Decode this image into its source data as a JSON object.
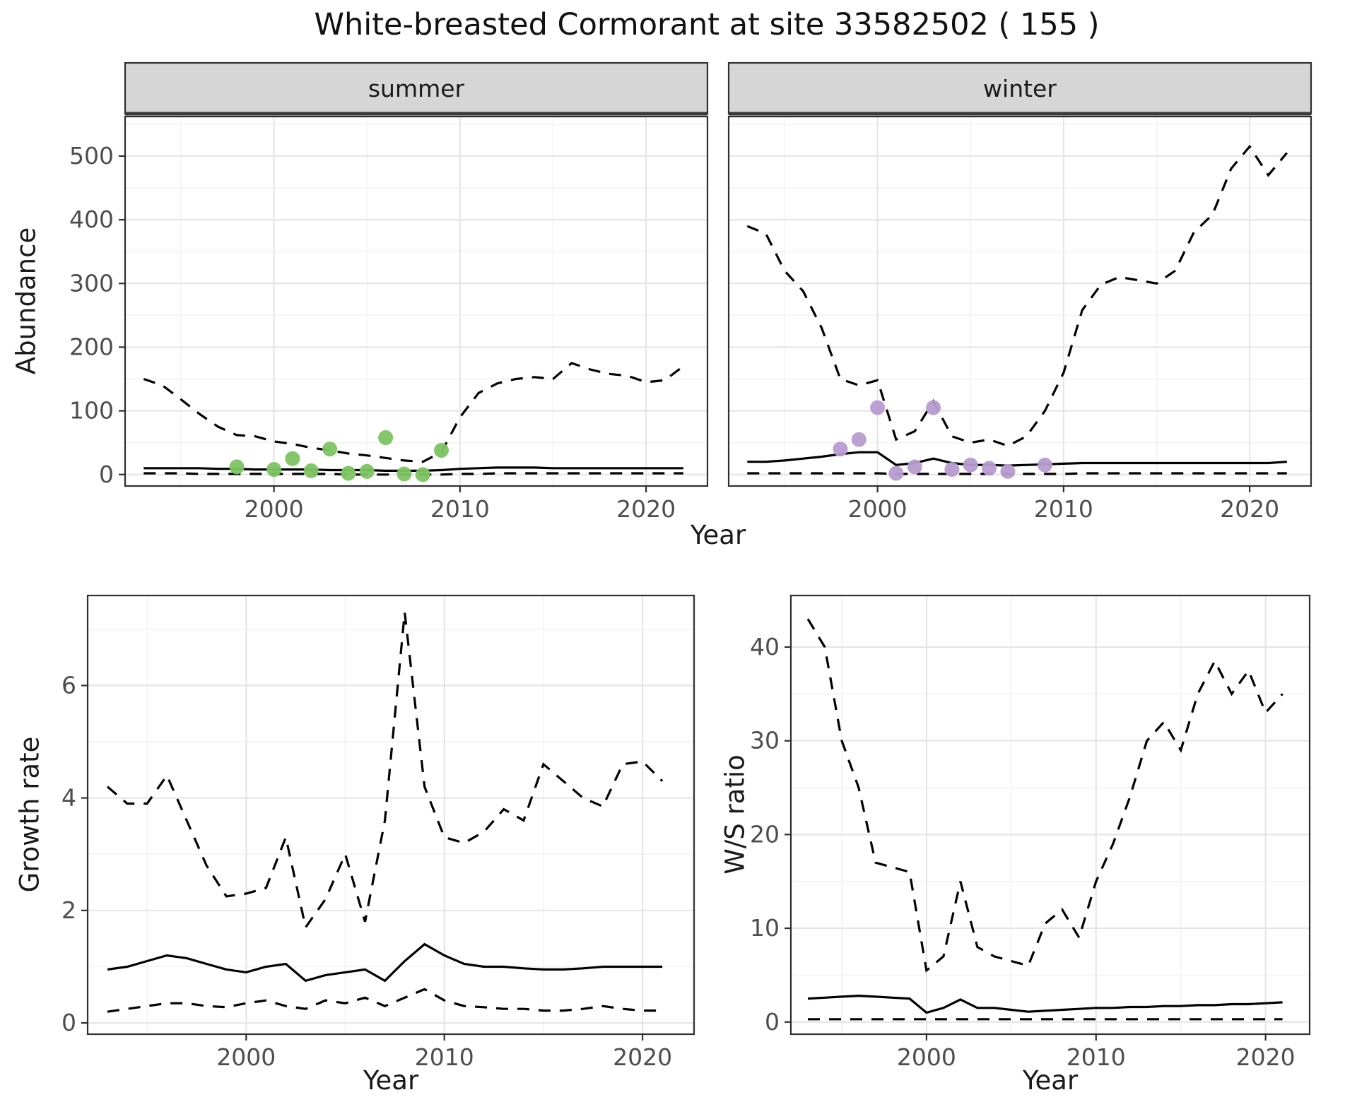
{
  "title": "White-breasted Cormorant at site 33582502 ( 155 )",
  "style": {
    "panel_bg": "#ffffff",
    "panel_border": "#2f2f2f",
    "grid_major": "#e4e4e4",
    "grid_minor": "#f2f2f2",
    "strip_bg": "#d6d6d6",
    "strip_divider": "#3a3a3a",
    "line": "#000000",
    "tick_text": "#4d4d4d",
    "summer_point_color": "#7cc462",
    "winter_point_color": "#b79bd0"
  },
  "chart_data": [
    {
      "type": "line",
      "facet_label": "summer",
      "xlabel": "Year",
      "ylabel": "Abundance",
      "xlim": [
        1992,
        2023.3
      ],
      "ylim": [
        -18,
        562
      ],
      "xticks": [
        2000,
        2010,
        2020
      ],
      "yticks": [
        0,
        100,
        200,
        300,
        400,
        500
      ],
      "x": [
        1993,
        1994,
        1995,
        1996,
        1997,
        1998,
        1999,
        2000,
        2001,
        2002,
        2003,
        2004,
        2005,
        2006,
        2007,
        2008,
        2009,
        2010,
        2011,
        2012,
        2013,
        2014,
        2015,
        2016,
        2017,
        2018,
        2019,
        2020,
        2021,
        2022
      ],
      "series": [
        {
          "name": "upper-ci",
          "dashed": true,
          "values": [
            150,
            140,
            118,
            95,
            75,
            62,
            60,
            52,
            48,
            42,
            38,
            33,
            30,
            26,
            22,
            20,
            35,
            90,
            128,
            143,
            150,
            153,
            150,
            175,
            165,
            158,
            155,
            145,
            148,
            170
          ]
        },
        {
          "name": "median",
          "dashed": false,
          "values": [
            10,
            10,
            10,
            10,
            9,
            9,
            8,
            8,
            8,
            8,
            7,
            7,
            7,
            6,
            6,
            6,
            7,
            9,
            10,
            11,
            11,
            11,
            10,
            10,
            10,
            10,
            10,
            10,
            10,
            10
          ]
        },
        {
          "name": "lower-ci",
          "dashed": true,
          "values": [
            2,
            2,
            2,
            1,
            1,
            1,
            1,
            1,
            1,
            1,
            1,
            0,
            0,
            0,
            0,
            0,
            0,
            1,
            1,
            2,
            2,
            2,
            2,
            2,
            2,
            2,
            2,
            2,
            2,
            2
          ]
        }
      ],
      "points": {
        "name": "summer-counts",
        "color": "#7cc462",
        "x": [
          1998,
          2000,
          2001,
          2002,
          2003,
          2004,
          2005,
          2006,
          2007,
          2008,
          2009
        ],
        "y": [
          12,
          8,
          25,
          6,
          40,
          2,
          5,
          58,
          1,
          0,
          38
        ]
      }
    },
    {
      "type": "line",
      "facet_label": "winter",
      "xlabel": "Year",
      "ylabel": "Abundance",
      "xlim": [
        1992,
        2023.3
      ],
      "ylim": [
        -18,
        562
      ],
      "xticks": [
        2000,
        2010,
        2020
      ],
      "yticks": [
        0,
        100,
        200,
        300,
        400,
        500
      ],
      "x": [
        1993,
        1994,
        1995,
        1996,
        1997,
        1998,
        1999,
        2000,
        2001,
        2002,
        2003,
        2004,
        2005,
        2006,
        2007,
        2008,
        2009,
        2010,
        2011,
        2012,
        2013,
        2014,
        2015,
        2016,
        2017,
        2018,
        2019,
        2020,
        2021,
        2022
      ],
      "series": [
        {
          "name": "upper-ci",
          "dashed": true,
          "values": [
            390,
            378,
            320,
            288,
            230,
            150,
            140,
            148,
            55,
            68,
            115,
            60,
            50,
            55,
            45,
            60,
            100,
            160,
            258,
            298,
            310,
            305,
            300,
            320,
            380,
            408,
            480,
            515,
            470,
            505
          ]
        },
        {
          "name": "median",
          "dashed": false,
          "values": [
            20,
            20,
            22,
            25,
            28,
            32,
            35,
            35,
            15,
            18,
            25,
            18,
            15,
            15,
            14,
            15,
            16,
            17,
            18,
            18,
            18,
            18,
            18,
            18,
            18,
            18,
            18,
            18,
            18,
            20
          ]
        },
        {
          "name": "lower-ci",
          "dashed": true,
          "values": [
            2,
            2,
            2,
            2,
            2,
            2,
            2,
            2,
            1,
            1,
            1,
            1,
            1,
            1,
            1,
            1,
            1,
            1,
            2,
            2,
            2,
            2,
            2,
            2,
            2,
            2,
            2,
            2,
            2,
            2
          ]
        }
      ],
      "points": {
        "name": "winter-counts",
        "color": "#b79bd0",
        "x": [
          1998,
          1999,
          2000,
          2001,
          2002,
          2003,
          2004,
          2005,
          2006,
          2007,
          2009
        ],
        "y": [
          40,
          55,
          105,
          2,
          12,
          105,
          8,
          15,
          10,
          5,
          15
        ]
      }
    },
    {
      "type": "line",
      "facet_label": "",
      "xlabel": "Year",
      "ylabel": "Growth rate",
      "xlim": [
        1992,
        2022.6
      ],
      "ylim": [
        -0.2,
        7.6
      ],
      "xticks": [
        2000,
        2010,
        2020
      ],
      "yticks": [
        0,
        2,
        4,
        6
      ],
      "x": [
        1993,
        1994,
        1995,
        1996,
        1997,
        1998,
        1999,
        2000,
        2001,
        2002,
        2003,
        2004,
        2005,
        2006,
        2007,
        2008,
        2009,
        2010,
        2011,
        2012,
        2013,
        2014,
        2015,
        2016,
        2017,
        2018,
        2019,
        2020,
        2021
      ],
      "series": [
        {
          "name": "upper-ci",
          "dashed": true,
          "values": [
            4.2,
            3.9,
            3.9,
            4.4,
            3.6,
            2.8,
            2.25,
            2.3,
            2.4,
            3.3,
            1.7,
            2.2,
            3.0,
            1.8,
            3.6,
            7.3,
            4.2,
            3.3,
            3.2,
            3.4,
            3.8,
            3.6,
            4.6,
            4.3,
            4.0,
            3.85,
            4.6,
            4.65,
            4.3
          ]
        },
        {
          "name": "median",
          "dashed": false,
          "values": [
            0.95,
            1.0,
            1.1,
            1.2,
            1.15,
            1.05,
            0.95,
            0.9,
            1.0,
            1.05,
            0.75,
            0.85,
            0.9,
            0.95,
            0.75,
            1.1,
            1.4,
            1.2,
            1.05,
            1.0,
            1.0,
            0.97,
            0.95,
            0.95,
            0.97,
            1.0,
            1.0,
            1.0,
            1.0
          ]
        },
        {
          "name": "lower-ci",
          "dashed": true,
          "values": [
            0.2,
            0.25,
            0.3,
            0.35,
            0.35,
            0.3,
            0.28,
            0.35,
            0.4,
            0.3,
            0.25,
            0.4,
            0.35,
            0.45,
            0.3,
            0.45,
            0.6,
            0.4,
            0.3,
            0.28,
            0.25,
            0.25,
            0.22,
            0.22,
            0.25,
            0.3,
            0.25,
            0.22,
            0.22
          ]
        }
      ]
    },
    {
      "type": "line",
      "facet_label": "",
      "xlabel": "Year",
      "ylabel": "W/S ratio",
      "xlim": [
        1992,
        2022.6
      ],
      "ylim": [
        -1.3,
        45.5
      ],
      "xticks": [
        2000,
        2010,
        2020
      ],
      "yticks": [
        0,
        10,
        20,
        30,
        40
      ],
      "x": [
        1993,
        1994,
        1995,
        1996,
        1997,
        1998,
        1999,
        2000,
        2001,
        2002,
        2003,
        2004,
        2005,
        2006,
        2007,
        2008,
        2009,
        2010,
        2011,
        2012,
        2013,
        2014,
        2015,
        2016,
        2017,
        2018,
        2019,
        2020,
        2021
      ],
      "series": [
        {
          "name": "upper-ci",
          "dashed": true,
          "values": [
            43,
            40,
            30,
            25,
            17,
            16.5,
            16,
            5.5,
            7,
            15,
            8,
            7,
            6.5,
            6,
            10.5,
            12,
            9,
            15,
            19,
            24,
            30,
            32,
            29,
            35,
            38.5,
            35,
            37.5,
            33,
            35
          ]
        },
        {
          "name": "median",
          "dashed": false,
          "values": [
            2.5,
            2.6,
            2.7,
            2.8,
            2.7,
            2.6,
            2.5,
            1.0,
            1.5,
            2.4,
            1.5,
            1.5,
            1.3,
            1.1,
            1.2,
            1.3,
            1.4,
            1.5,
            1.5,
            1.6,
            1.6,
            1.7,
            1.7,
            1.8,
            1.8,
            1.9,
            1.9,
            2.0,
            2.1
          ]
        },
        {
          "name": "lower-ci",
          "dashed": true,
          "values": [
            0.3,
            0.3,
            0.3,
            0.3,
            0.3,
            0.3,
            0.3,
            0.3,
            0.3,
            0.3,
            0.3,
            0.3,
            0.3,
            0.3,
            0.3,
            0.3,
            0.3,
            0.3,
            0.3,
            0.3,
            0.3,
            0.3,
            0.3,
            0.3,
            0.3,
            0.3,
            0.3,
            0.3,
            0.3
          ]
        }
      ]
    }
  ]
}
